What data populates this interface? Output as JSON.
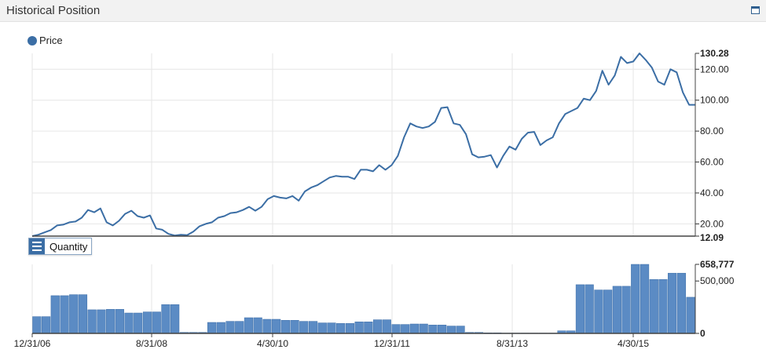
{
  "header": {
    "title": "Historical Position",
    "icon": "window-maximize-icon"
  },
  "legend": {
    "label": "Price",
    "color": "#3b6ea5"
  },
  "quantity_button": {
    "label": "Quantity",
    "icon": "menu-icon"
  },
  "chart_data": [
    {
      "type": "line",
      "series": [
        {
          "name": "Price",
          "color": "#3b6ea5",
          "values": [
            12.09,
            13,
            14.5,
            16,
            19,
            19.5,
            21,
            21.5,
            24,
            29,
            27.5,
            30,
            21,
            19,
            22,
            26.5,
            28.5,
            25,
            24,
            25.5,
            17,
            16.2,
            13.5,
            12.5,
            13,
            12.7,
            15,
            18.5,
            20,
            21,
            24,
            25,
            27,
            27.5,
            29,
            31,
            28.5,
            31,
            36,
            38,
            37,
            36.5,
            38,
            35,
            41,
            43.5,
            45,
            47.5,
            50,
            51,
            50.5,
            50.5,
            49,
            55,
            55,
            54,
            58,
            55,
            58,
            64,
            76,
            85,
            83,
            82,
            83,
            86,
            95,
            95.5,
            85,
            84,
            78,
            65,
            63,
            63.5,
            64.5,
            56.5,
            64,
            70,
            68,
            75,
            79,
            79.5,
            71,
            74,
            76,
            85,
            91,
            93,
            95,
            101,
            100,
            106,
            119,
            110,
            116,
            128,
            124,
            125,
            130.28,
            126,
            121,
            112,
            110,
            120,
            118,
            105,
            97,
            97
          ]
        }
      ],
      "y_ticks": [
        "20.00",
        "40.00",
        "60.00",
        "80.00",
        "100.00",
        "120.00"
      ],
      "y_ticks_bold": [
        "130.28",
        "12.09"
      ],
      "ylim": [
        12.09,
        130.28
      ]
    },
    {
      "type": "bar",
      "series": [
        {
          "name": "Quantity",
          "color": "#5b8bc4",
          "values": [
            160000,
            160000,
            360000,
            360000,
            370000,
            370000,
            225000,
            225000,
            230000,
            230000,
            195000,
            195000,
            205000,
            205000,
            275000,
            275000,
            10000,
            10000,
            10000,
            105000,
            105000,
            115000,
            115000,
            150000,
            150000,
            135000,
            135000,
            125000,
            125000,
            115000,
            115000,
            100000,
            100000,
            95000,
            95000,
            110000,
            110000,
            130000,
            130000,
            85000,
            85000,
            90000,
            90000,
            80000,
            80000,
            70000,
            70000,
            10000,
            10000,
            5000,
            5000,
            3000,
            3000,
            3000,
            3000,
            3000,
            3000,
            25000,
            25000,
            465000,
            465000,
            415000,
            415000,
            450000,
            450000,
            658777,
            658777,
            515000,
            515000,
            575000,
            575000,
            345000
          ]
        }
      ],
      "y_ticks": [
        "500,000"
      ],
      "y_ticks_bold": [
        "658,777",
        "0"
      ],
      "ylim": [
        0,
        658777
      ]
    }
  ],
  "x_axis": {
    "labels": [
      "12/31/06",
      "8/31/08",
      "4/30/10",
      "12/31/11",
      "8/31/13",
      "4/30/15"
    ]
  }
}
